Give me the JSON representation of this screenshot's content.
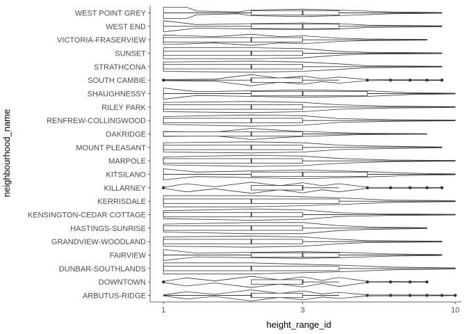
{
  "chart_data": {
    "type": "violin+box",
    "xlabel": "height_range_id",
    "ylabel": "neighbourhood_name",
    "x_scale": "log10",
    "xlim": [
      0.9,
      10.5
    ],
    "x_ticks": [
      1,
      3,
      10
    ],
    "grid": false,
    "categories": [
      "WEST POINT GREY",
      "WEST END",
      "VICTORIA-FRASERVIEW",
      "SUNSET",
      "STRATHCONA",
      "SOUTH CAMBIE",
      "SHAUGHNESSY",
      "RILEY PARK",
      "RENFREW-COLLINGWOOD",
      "OAKRIDGE",
      "MOUNT PLEASANT",
      "MARPOLE",
      "KITSILANO",
      "KILLARNEY",
      "KERRISDALE",
      "KENSINGTON-CEDAR COTTAGE",
      "HASTINGS-SUNRISE",
      "GRANDVIEW-WOODLAND",
      "FAIRVIEW",
      "DUNBAR-SOUTHLANDS",
      "DOWNTOWN",
      "ARBUTUS-RIDGE"
    ],
    "series": [
      {
        "category": "WEST POINT GREY",
        "q1": 2,
        "median": 3,
        "q3": 4,
        "whisker_low": 1,
        "whisker_high": 9,
        "outliers": [],
        "density": [
          [
            1,
            0.3
          ],
          [
            1.2,
            0.3
          ],
          [
            1.3,
            0.1
          ],
          [
            1.8,
            0.05
          ],
          [
            2,
            0.15
          ],
          [
            3,
            0.2
          ],
          [
            4,
            0.15
          ],
          [
            6,
            0.05
          ],
          [
            9,
            0.02
          ]
        ]
      },
      {
        "category": "WEST END",
        "q1": 2,
        "median": 3,
        "q3": 4,
        "whisker_low": 1,
        "whisker_high": 9,
        "outliers": [],
        "density": [
          [
            1,
            0.25
          ],
          [
            1.3,
            0.08
          ],
          [
            2,
            0.12
          ],
          [
            3,
            0.15
          ],
          [
            4,
            0.12
          ],
          [
            5,
            0.05
          ],
          [
            9,
            0.02
          ]
        ]
      },
      {
        "category": "VICTORIA-FRASERVIEW",
        "q1": 1,
        "median": 2,
        "q3": 3,
        "whisker_low": 1,
        "whisker_high": 8,
        "outliers": [],
        "density": [
          [
            1,
            0.3
          ],
          [
            1.5,
            0.2
          ],
          [
            2,
            0.35
          ],
          [
            2.5,
            0.2
          ],
          [
            3,
            0.25
          ],
          [
            4,
            0.1
          ],
          [
            5,
            0.05
          ],
          [
            8,
            0.02
          ]
        ]
      },
      {
        "category": "SUNSET",
        "q1": 1,
        "median": 2,
        "q3": 3,
        "whisker_low": 1,
        "whisker_high": 9,
        "outliers": [],
        "density": [
          [
            1,
            0.3
          ],
          [
            2,
            0.3
          ],
          [
            3,
            0.25
          ],
          [
            4,
            0.1
          ],
          [
            5,
            0.05
          ],
          [
            9,
            0.02
          ]
        ]
      },
      {
        "category": "STRATHCONA",
        "q1": 1,
        "median": 2,
        "q3": 3,
        "whisker_low": 1,
        "whisker_high": 9,
        "outliers": [],
        "density": [
          [
            1,
            0.25
          ],
          [
            2,
            0.3
          ],
          [
            3,
            0.25
          ],
          [
            4,
            0.15
          ],
          [
            5,
            0.05
          ],
          [
            9,
            0.02
          ]
        ]
      },
      {
        "category": "SOUTH CAMBIE",
        "q1": 2,
        "median": 2,
        "q3": 3,
        "whisker_low": 1,
        "whisker_high": 4,
        "outliers": [
          1,
          5,
          6,
          7,
          8,
          9
        ],
        "density": [
          [
            1,
            0.05
          ],
          [
            1.5,
            0.1
          ],
          [
            2,
            0.55
          ],
          [
            2.5,
            0.2
          ],
          [
            3,
            0.4
          ],
          [
            3.5,
            0.15
          ],
          [
            4,
            0.3
          ],
          [
            5,
            0.05
          ],
          [
            6,
            0.03
          ],
          [
            9,
            0.02
          ]
        ]
      },
      {
        "category": "SHAUGHNESSY",
        "q1": 2,
        "median": 3,
        "q3": 5,
        "whisker_low": 1,
        "whisker_high": 10,
        "outliers": [],
        "density": [
          [
            1,
            0.3
          ],
          [
            1.3,
            0.1
          ],
          [
            2,
            0.15
          ],
          [
            3,
            0.2
          ],
          [
            5,
            0.15
          ],
          [
            7,
            0.05
          ],
          [
            10,
            0.02
          ]
        ]
      },
      {
        "category": "RILEY PARK",
        "q1": 1,
        "median": 2,
        "q3": 3,
        "whisker_low": 1,
        "whisker_high": 10,
        "outliers": [],
        "density": [
          [
            1,
            0.25
          ],
          [
            2,
            0.3
          ],
          [
            3,
            0.25
          ],
          [
            4,
            0.12
          ],
          [
            6,
            0.05
          ],
          [
            10,
            0.02
          ]
        ]
      },
      {
        "category": "RENFREW-COLLINGWOOD",
        "q1": 1,
        "median": 2,
        "q3": 3,
        "whisker_low": 1,
        "whisker_high": 10,
        "outliers": [],
        "density": [
          [
            1,
            0.25
          ],
          [
            2,
            0.35
          ],
          [
            3,
            0.3
          ],
          [
            4,
            0.12
          ],
          [
            6,
            0.05
          ],
          [
            10,
            0.02
          ]
        ]
      },
      {
        "category": "OAKRIDGE",
        "q1": 1,
        "median": 2,
        "q3": 3,
        "whisker_low": 1,
        "whisker_high": 8,
        "outliers": [],
        "density": [
          [
            1,
            0.2
          ],
          [
            1.5,
            0.15
          ],
          [
            2,
            0.45
          ],
          [
            2.5,
            0.3
          ],
          [
            3,
            0.2
          ],
          [
            4,
            0.1
          ],
          [
            5,
            0.05
          ],
          [
            8,
            0.02
          ]
        ]
      },
      {
        "category": "MOUNT PLEASANT",
        "q1": 1,
        "median": 2,
        "q3": 3,
        "whisker_low": 1,
        "whisker_high": 9,
        "outliers": [],
        "density": [
          [
            1,
            0.25
          ],
          [
            2,
            0.3
          ],
          [
            3,
            0.25
          ],
          [
            4,
            0.12
          ],
          [
            5,
            0.08
          ],
          [
            9,
            0.02
          ]
        ]
      },
      {
        "category": "MARPOLE",
        "q1": 1,
        "median": 2,
        "q3": 3,
        "whisker_low": 1,
        "whisker_high": 10,
        "outliers": [],
        "density": [
          [
            1,
            0.25
          ],
          [
            2,
            0.35
          ],
          [
            3,
            0.3
          ],
          [
            4,
            0.15
          ],
          [
            6,
            0.05
          ],
          [
            10,
            0.02
          ]
        ]
      },
      {
        "category": "KITSILANO",
        "q1": 2,
        "median": 3,
        "q3": 5,
        "whisker_low": 1,
        "whisker_high": 10,
        "outliers": [],
        "density": [
          [
            1,
            0.25
          ],
          [
            1.3,
            0.1
          ],
          [
            2,
            0.15
          ],
          [
            3,
            0.2
          ],
          [
            5,
            0.12
          ],
          [
            7,
            0.05
          ],
          [
            10,
            0.02
          ]
        ]
      },
      {
        "category": "KILLARNEY",
        "q1": 2,
        "median": 3,
        "q3": 3,
        "whisker_low": 2,
        "whisker_high": 4,
        "outliers": [
          1,
          5,
          6,
          7,
          8,
          9
        ],
        "density": [
          [
            1,
            0.05
          ],
          [
            1.2,
            0.4
          ],
          [
            1.5,
            0.1
          ],
          [
            2,
            0.55
          ],
          [
            2.5,
            0.2
          ],
          [
            3,
            0.5
          ],
          [
            3.5,
            0.2
          ],
          [
            4,
            0.4
          ],
          [
            5,
            0.05
          ],
          [
            9,
            0.02
          ]
        ]
      },
      {
        "category": "KERRISDALE",
        "q1": 1,
        "median": 2,
        "q3": 4,
        "whisker_low": 1,
        "whisker_high": 10,
        "outliers": [],
        "density": [
          [
            1,
            0.25
          ],
          [
            2,
            0.25
          ],
          [
            3,
            0.2
          ],
          [
            4,
            0.15
          ],
          [
            6,
            0.05
          ],
          [
            10,
            0.02
          ]
        ]
      },
      {
        "category": "KENSINGTON-CEDAR COTTAGE",
        "q1": 1,
        "median": 2,
        "q3": 3,
        "whisker_low": 1,
        "whisker_high": 10,
        "outliers": [],
        "density": [
          [
            1,
            0.25
          ],
          [
            2,
            0.35
          ],
          [
            3,
            0.3
          ],
          [
            4,
            0.12
          ],
          [
            6,
            0.05
          ],
          [
            10,
            0.02
          ]
        ]
      },
      {
        "category": "HASTINGS-SUNRISE",
        "q1": 1,
        "median": 2,
        "q3": 3,
        "whisker_low": 1,
        "whisker_high": 8,
        "outliers": [],
        "density": [
          [
            1,
            0.25
          ],
          [
            2,
            0.35
          ],
          [
            3,
            0.35
          ],
          [
            4,
            0.15
          ],
          [
            5,
            0.08
          ],
          [
            8,
            0.02
          ]
        ]
      },
      {
        "category": "GRANDVIEW-WOODLAND",
        "q1": 1,
        "median": 2,
        "q3": 3,
        "whisker_low": 1,
        "whisker_high": 9,
        "outliers": [],
        "density": [
          [
            1,
            0.25
          ],
          [
            2,
            0.3
          ],
          [
            3,
            0.25
          ],
          [
            4,
            0.12
          ],
          [
            5,
            0.05
          ],
          [
            9,
            0.02
          ]
        ]
      },
      {
        "category": "FAIRVIEW",
        "q1": 2,
        "median": 3,
        "q3": 4,
        "whisker_low": 1,
        "whisker_high": 9,
        "outliers": [],
        "density": [
          [
            1,
            0.25
          ],
          [
            1.3,
            0.08
          ],
          [
            2,
            0.12
          ],
          [
            3,
            0.15
          ],
          [
            4,
            0.12
          ],
          [
            6,
            0.05
          ],
          [
            9,
            0.02
          ]
        ]
      },
      {
        "category": "DUNBAR-SOUTHLANDS",
        "q1": 1,
        "median": 2,
        "q3": 4,
        "whisker_low": 1,
        "whisker_high": 10,
        "outliers": [],
        "density": [
          [
            1,
            0.2
          ],
          [
            2,
            0.2
          ],
          [
            3,
            0.15
          ],
          [
            4,
            0.12
          ],
          [
            6,
            0.05
          ],
          [
            10,
            0.02
          ]
        ]
      },
      {
        "category": "DOWNTOWN",
        "q1": 2,
        "median": 3,
        "q3": 3,
        "whisker_low": 2,
        "whisker_high": 4,
        "outliers": [
          1,
          5,
          6,
          7,
          8
        ],
        "density": [
          [
            1,
            0.05
          ],
          [
            1.2,
            0.4
          ],
          [
            1.5,
            0.1
          ],
          [
            2,
            0.55
          ],
          [
            2.5,
            0.2
          ],
          [
            3,
            0.5
          ],
          [
            3.5,
            0.15
          ],
          [
            4,
            0.45
          ],
          [
            5,
            0.05
          ],
          [
            8,
            0.02
          ]
        ]
      },
      {
        "category": "ARBUTUS-RIDGE",
        "q1": 2,
        "median": 2,
        "q3": 3,
        "whisker_low": 1,
        "whisker_high": 4,
        "outliers": [
          5,
          6,
          7,
          8,
          9,
          10
        ],
        "density": [
          [
            1,
            0.05
          ],
          [
            1.2,
            0.35
          ],
          [
            1.5,
            0.1
          ],
          [
            2,
            0.55
          ],
          [
            2.5,
            0.2
          ],
          [
            3,
            0.45
          ],
          [
            3.5,
            0.15
          ],
          [
            4,
            0.3
          ],
          [
            5,
            0.05
          ],
          [
            10,
            0.02
          ]
        ]
      }
    ]
  }
}
